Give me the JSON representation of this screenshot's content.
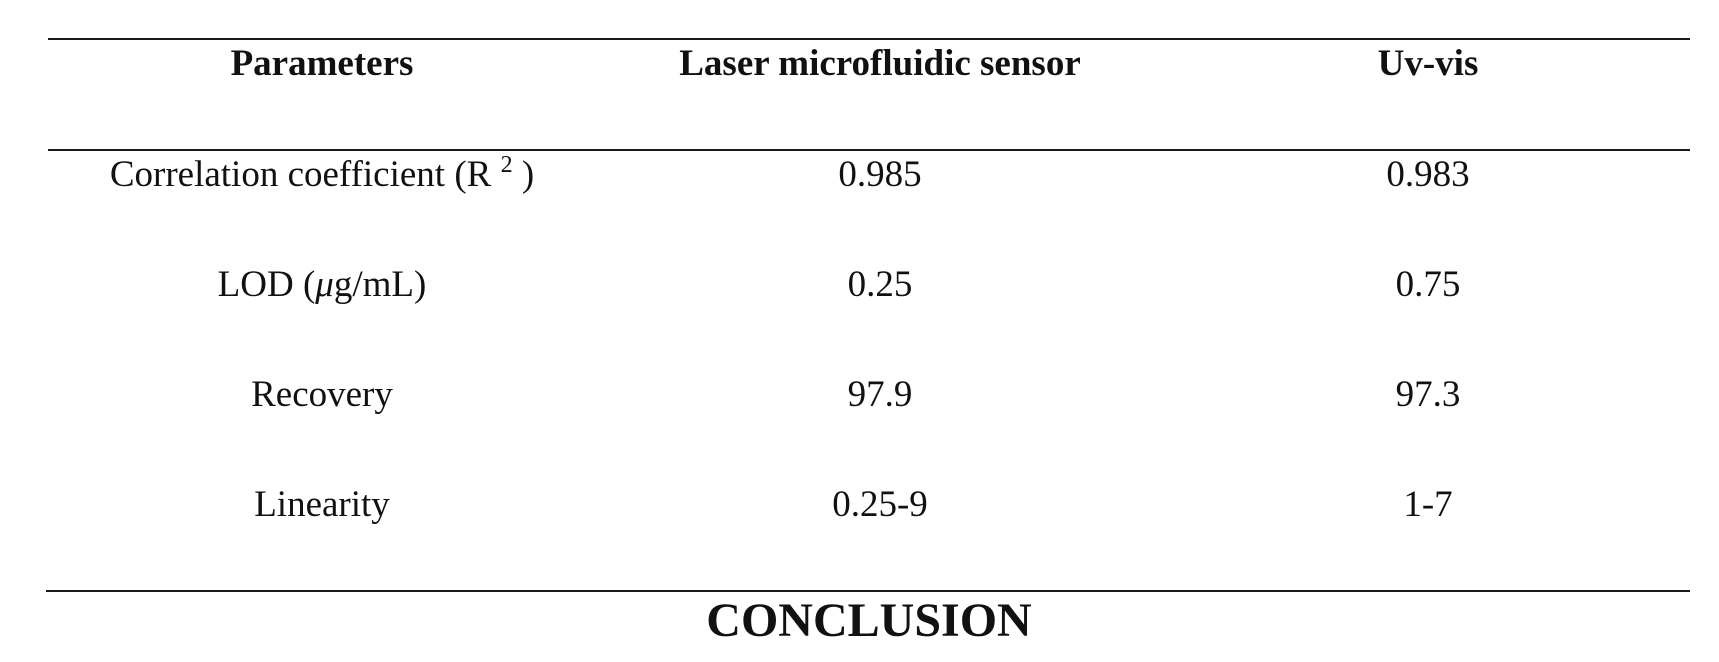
{
  "table": {
    "headers": [
      "Parameters",
      "Laser microfluidic sensor",
      "Uv-vis"
    ],
    "rows": [
      {
        "param_text": "Correlation coefficient (R",
        "param_sup": "2",
        "param_close": " )",
        "laser": "0.985",
        "uvvis": "0.983"
      },
      {
        "param_prefix": "LOD (",
        "param_mu": "μ",
        "param_suffix": "g/mL)",
        "laser": "0.25",
        "uvvis": "0.75"
      },
      {
        "param": "Recovery",
        "laser": "97.9",
        "uvvis": "97.3"
      },
      {
        "param": "Linearity",
        "laser": "0.25-9",
        "uvvis": "1-7"
      }
    ]
  },
  "section_heading": "CONCLUSION"
}
